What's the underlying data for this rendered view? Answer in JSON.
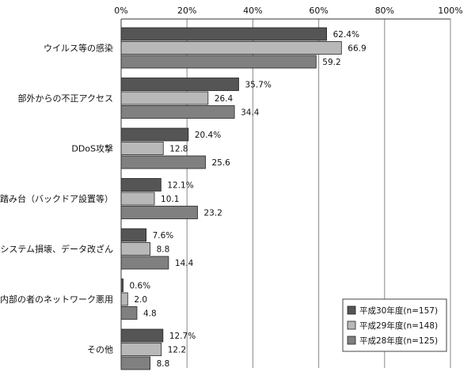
{
  "chart_data": {
    "type": "bar",
    "orientation": "horizontal",
    "categories": [
      "ウイルス等の感染",
      "部外からの不正アクセス",
      "DDoS攻撃",
      "踏み台（バックドア設置等）",
      "システム損壊、データ改ざん",
      "内部の者のネットワーク悪用",
      "その他"
    ],
    "series": [
      {
        "name": "平成30年度(n=157)",
        "color": "#555555",
        "values": [
          62.4,
          35.7,
          20.4,
          12.1,
          7.6,
          0.6,
          12.7
        ],
        "labels": [
          "62.4%",
          "35.7%",
          "20.4%",
          "12.1%",
          "7.6%",
          "0.6%",
          "12.7%"
        ]
      },
      {
        "name": "平成29年度(n=148)",
        "color": "#b8b8b8",
        "values": [
          66.9,
          26.4,
          12.8,
          10.1,
          8.8,
          2.0,
          12.2
        ],
        "labels": [
          "66.9",
          "26.4",
          "12.8",
          "10.1",
          "8.8",
          "2.0",
          "12.2"
        ]
      },
      {
        "name": "平成28年度(n=125)",
        "color": "#808080",
        "values": [
          59.2,
          34.4,
          25.6,
          23.2,
          14.4,
          4.8,
          8.8
        ],
        "labels": [
          "59.2",
          "34.4",
          "25.6",
          "23.2",
          "14.4",
          "4.8",
          "8.8"
        ]
      }
    ],
    "xlim": [
      0,
      100
    ],
    "xticks": [
      "0%",
      "20%",
      "40%",
      "60%",
      "80%",
      "100%"
    ],
    "grid": true,
    "legend_position": "bottom-right"
  }
}
